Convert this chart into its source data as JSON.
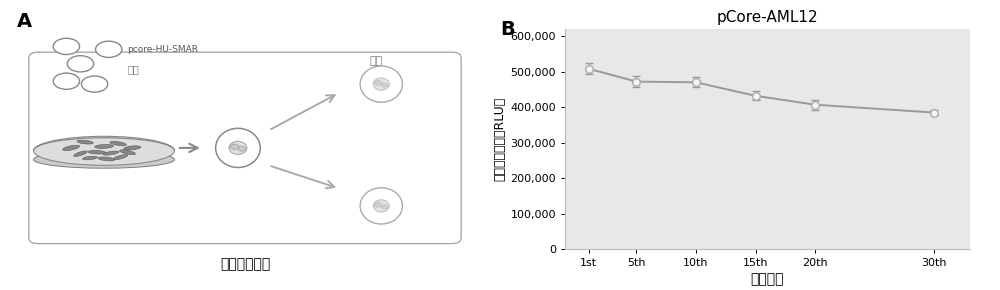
{
  "panel_b": {
    "title": "pCore-AML12",
    "xlabel": "传代次数",
    "ylabel": "发光信号强度（RLU）",
    "x_labels": [
      "1st",
      "5th",
      "10th",
      "15th",
      "20th",
      "30th"
    ],
    "x_values": [
      1,
      5,
      10,
      15,
      20,
      30
    ],
    "y_values": [
      508000,
      472000,
      470000,
      432000,
      407000,
      385000
    ],
    "y_errors": [
      15000,
      15000,
      14000,
      13000,
      14000,
      8000
    ],
    "ylim": [
      0,
      620000
    ],
    "yticks": [
      0,
      100000,
      200000,
      300000,
      400000,
      500000,
      600000
    ],
    "ytick_labels": [
      "0",
      "100,000",
      "200,000",
      "300,000",
      "400,000",
      "500,000",
      "600,000"
    ],
    "line_color": "#999999",
    "marker_color": "#aaaaaa",
    "marker_face": "#f5f5f5",
    "bg_color": "#e8e8e8",
    "title_fontsize": 11,
    "label_fontsize": 9,
    "tick_fontsize": 8
  },
  "panel_a": {
    "label": "A",
    "title": "细胞筛选流程",
    "plasmid_label1": "pcore-HU-SMAR",
    "plasmid_label2": "转染",
    "screen_label": "筛选"
  }
}
